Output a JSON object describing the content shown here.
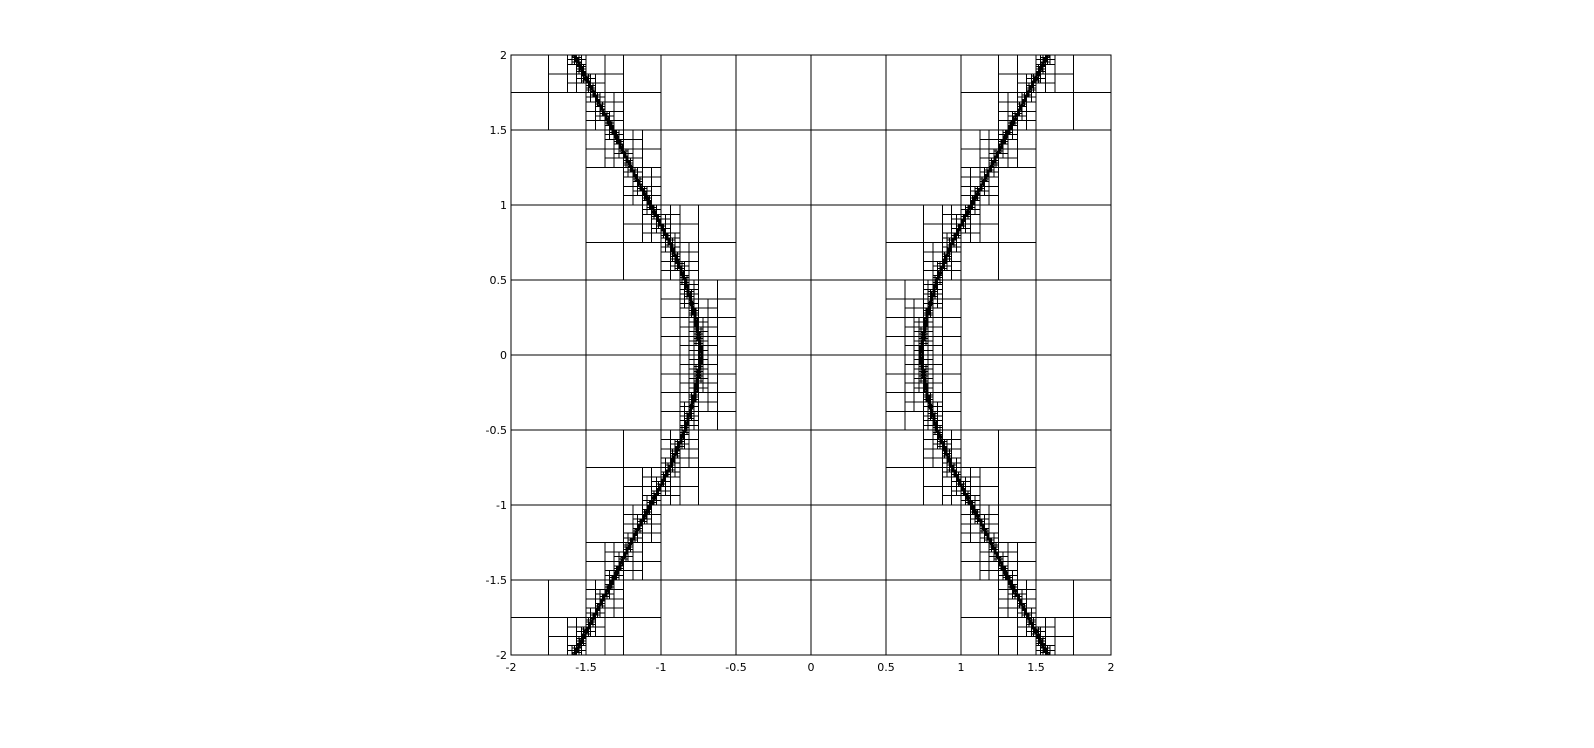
{
  "chart_data": {
    "type": "quadtree-mesh",
    "title": "",
    "xlabel": "",
    "ylabel": "",
    "xlim": [
      -2,
      2
    ],
    "ylim": [
      -2,
      2
    ],
    "xticks": [
      "-2",
      "-1.5",
      "-1",
      "-0.5",
      "0",
      "0.5",
      "1",
      "1.5",
      "2"
    ],
    "xtick_values": [
      -2,
      -1.5,
      -1,
      -0.5,
      0,
      0.5,
      1,
      1.5,
      2
    ],
    "yticks": [
      "2",
      "1.5",
      "1",
      "0.5",
      "0",
      "-0.5",
      "-1",
      "-1.5",
      "-2"
    ],
    "ytick_values": [
      2,
      1.5,
      1,
      0.5,
      0,
      -0.5,
      -1,
      -1.5,
      -2
    ],
    "base_cell_size": 0.5,
    "max_refinement_level": 7,
    "refinement_curves": [
      {
        "points": [
          [
            -1.58,
            -2.0
          ],
          [
            -1.45,
            -1.75
          ],
          [
            -1.32,
            -1.5
          ],
          [
            -1.2,
            -1.25
          ],
          [
            -1.07,
            -1.0
          ],
          [
            -0.94,
            -0.75
          ],
          [
            -0.84,
            -0.5
          ],
          [
            -0.77,
            -0.25
          ],
          [
            -0.73,
            0.0
          ],
          [
            -0.77,
            0.25
          ],
          [
            -0.84,
            0.5
          ],
          [
            -0.94,
            0.75
          ],
          [
            -1.07,
            1.0
          ],
          [
            -1.2,
            1.25
          ],
          [
            -1.32,
            1.5
          ],
          [
            -1.45,
            1.75
          ],
          [
            -1.58,
            2.0
          ]
        ]
      },
      {
        "points": [
          [
            1.58,
            -2.0
          ],
          [
            1.45,
            -1.75
          ],
          [
            1.32,
            -1.5
          ],
          [
            1.2,
            -1.25
          ],
          [
            1.07,
            -1.0
          ],
          [
            0.94,
            -0.75
          ],
          [
            0.84,
            -0.5
          ],
          [
            0.77,
            -0.25
          ],
          [
            0.73,
            0.0
          ],
          [
            0.77,
            0.25
          ],
          [
            0.84,
            0.5
          ],
          [
            0.94,
            0.75
          ],
          [
            1.07,
            1.0
          ],
          [
            1.2,
            1.25
          ],
          [
            1.32,
            1.5
          ],
          [
            1.45,
            1.75
          ],
          [
            1.58,
            2.0
          ]
        ]
      }
    ],
    "colors": {
      "line": "#000000",
      "background": "#ffffff"
    },
    "grid": false,
    "legend": "none"
  }
}
